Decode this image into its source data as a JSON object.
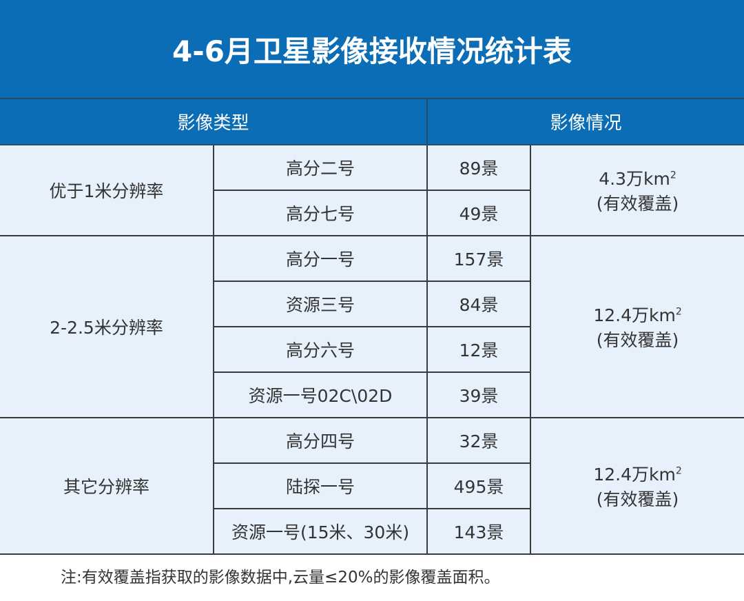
{
  "title": "4-6月卫星影像接收情况统计表",
  "headers": [
    "影像类型",
    "影像情况"
  ],
  "groups": [
    {
      "category": "优于1米分辨率",
      "coverage": "4.3万km",
      "coverage_sup": "2",
      "coverage_note": "(有效覆盖)",
      "rows": [
        {
          "satellite": "高分二号",
          "count": "89景"
        },
        {
          "satellite": "高分七号",
          "count": "49景"
        }
      ]
    },
    {
      "category": "2-2.5米分辨率",
      "coverage": "12.4万km",
      "coverage_sup": "2",
      "coverage_note": "(有效覆盖)",
      "rows": [
        {
          "satellite": "高分一号",
          "count": "157景"
        },
        {
          "satellite": "资源三号",
          "count": "84景"
        },
        {
          "satellite": "高分六号",
          "count": "12景"
        },
        {
          "satellite": "资源一号02C\\02D",
          "count": "39景"
        }
      ]
    },
    {
      "category": "其它分辨率",
      "coverage": "12.4万km",
      "coverage_sup": "2",
      "coverage_note": "(有效覆盖)",
      "rows": [
        {
          "satellite": "高分四号",
          "count": "32景"
        },
        {
          "satellite": "陆探一号",
          "count": "495景"
        },
        {
          "satellite": "资源一号(15米、30米)",
          "count": "143景"
        }
      ]
    }
  ],
  "note": "注:有效覆盖指获取的影像数据中,云量≤20%的影像覆盖面积。",
  "colors": {
    "header_bg": "#0b6db5",
    "cell_bg": "#e7f1fb",
    "border": "#3a3a3a"
  }
}
